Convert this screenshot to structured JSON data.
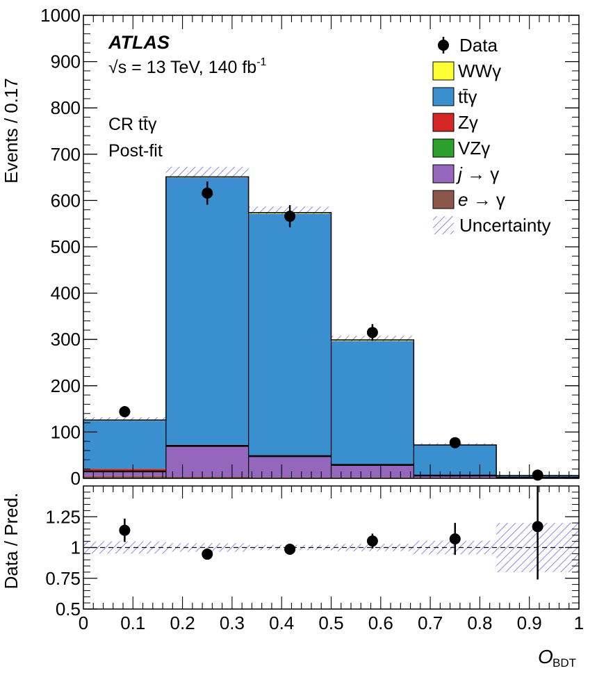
{
  "chart_data": {
    "type": "bar",
    "stacked": true,
    "bin_edges": [
      0,
      0.1667,
      0.3333,
      0.5,
      0.6667,
      0.8333,
      1.0
    ],
    "experiment": "ATLAS",
    "energy_prefix": "√s = 13 TeV, 140 fb",
    "energy_sup": "-1",
    "region_label": "CR tt̄γ",
    "fit_label": "Post-fit",
    "ylabel": "Events / 0.17",
    "xlabel": "O",
    "xlabel_sub": "BDT",
    "ratio_ylabel": "Data / Pred.",
    "ylim": [
      0,
      1000
    ],
    "ratio_ylim": [
      0.5,
      1.5
    ],
    "xlim": [
      0,
      1
    ],
    "yticks": [
      0,
      100,
      200,
      300,
      400,
      500,
      600,
      700,
      800,
      900,
      1000
    ],
    "ratio_yticks": [
      {
        "v": 0.5,
        "label": "0.5"
      },
      {
        "v": 0.75,
        "label": "0.75"
      },
      {
        "v": 1.0,
        "label": "1"
      },
      {
        "v": 1.25,
        "label": "1.25"
      }
    ],
    "xticks": [
      {
        "v": 0,
        "label": "0"
      },
      {
        "v": 0.1,
        "label": "0.1"
      },
      {
        "v": 0.2,
        "label": "0.2"
      },
      {
        "v": 0.3,
        "label": "0.3"
      },
      {
        "v": 0.4,
        "label": "0.4"
      },
      {
        "v": 0.5,
        "label": "0.5"
      },
      {
        "v": 0.6,
        "label": "0.6"
      },
      {
        "v": 0.7,
        "label": "0.7"
      },
      {
        "v": 0.8,
        "label": "0.8"
      },
      {
        "v": 0.9,
        "label": "0.9"
      },
      {
        "v": 1,
        "label": "1"
      }
    ],
    "series": [
      {
        "name": "e → γ",
        "legend_italic": "e",
        "legend_rest": " → γ",
        "color": "#8c564b",
        "values": [
          5,
          3,
          2,
          2,
          1,
          0.5
        ]
      },
      {
        "name": "j → γ",
        "legend_italic": "j",
        "legend_rest": " → γ",
        "color": "#9467bd",
        "values": [
          10,
          67,
          46,
          27,
          5,
          1
        ]
      },
      {
        "name": "VZγ",
        "legend_italic": "",
        "legend_rest": "VZγ",
        "color": "#2ca02c",
        "values": [
          0.5,
          0.5,
          0.5,
          0.5,
          0.2,
          0.1
        ]
      },
      {
        "name": "Zγ",
        "legend_italic": "",
        "legend_rest": "Zγ",
        "color": "#d62728",
        "values": [
          5,
          2,
          1,
          1,
          0.5,
          0.2
        ]
      },
      {
        "name": "tt̄γ",
        "legend_italic": "",
        "legend_rest": "tt̄γ",
        "color": "#3a8fcf",
        "values": [
          104,
          577,
          522,
          266,
          65,
          4
        ]
      },
      {
        "name": "WWγ",
        "legend_italic": "",
        "legend_rest": "WWγ",
        "color": "#ffff33",
        "values": [
          2,
          2,
          3,
          3,
          1,
          0.2
        ]
      }
    ],
    "total_prediction": [
      126,
      651,
      574,
      299,
      72,
      6
    ],
    "uncertainty": [
      6,
      22,
      13,
      9,
      4,
      1.2
    ],
    "ratio_uncertainty": [
      0.05,
      0.035,
      0.022,
      0.03,
      0.055,
      0.2
    ],
    "data": {
      "x": [
        0.0833,
        0.25,
        0.4167,
        0.5833,
        0.75,
        0.9167
      ],
      "y": [
        144,
        616,
        566,
        315,
        77,
        7
      ],
      "yerr": [
        12,
        25,
        24,
        18,
        9,
        3
      ],
      "ratio": [
        1.14,
        0.946,
        0.986,
        1.053,
        1.07,
        1.17
      ],
      "ratio_err": [
        0.095,
        0.038,
        0.042,
        0.06,
        0.13,
        0.43
      ]
    },
    "legend": {
      "position": "top-right",
      "data_label": "Data",
      "uncertainty_label": "Uncertainty",
      "order": [
        "WWγ",
        "tt̄γ",
        "Zγ",
        "VZγ",
        "j → γ",
        "e → γ"
      ]
    }
  }
}
